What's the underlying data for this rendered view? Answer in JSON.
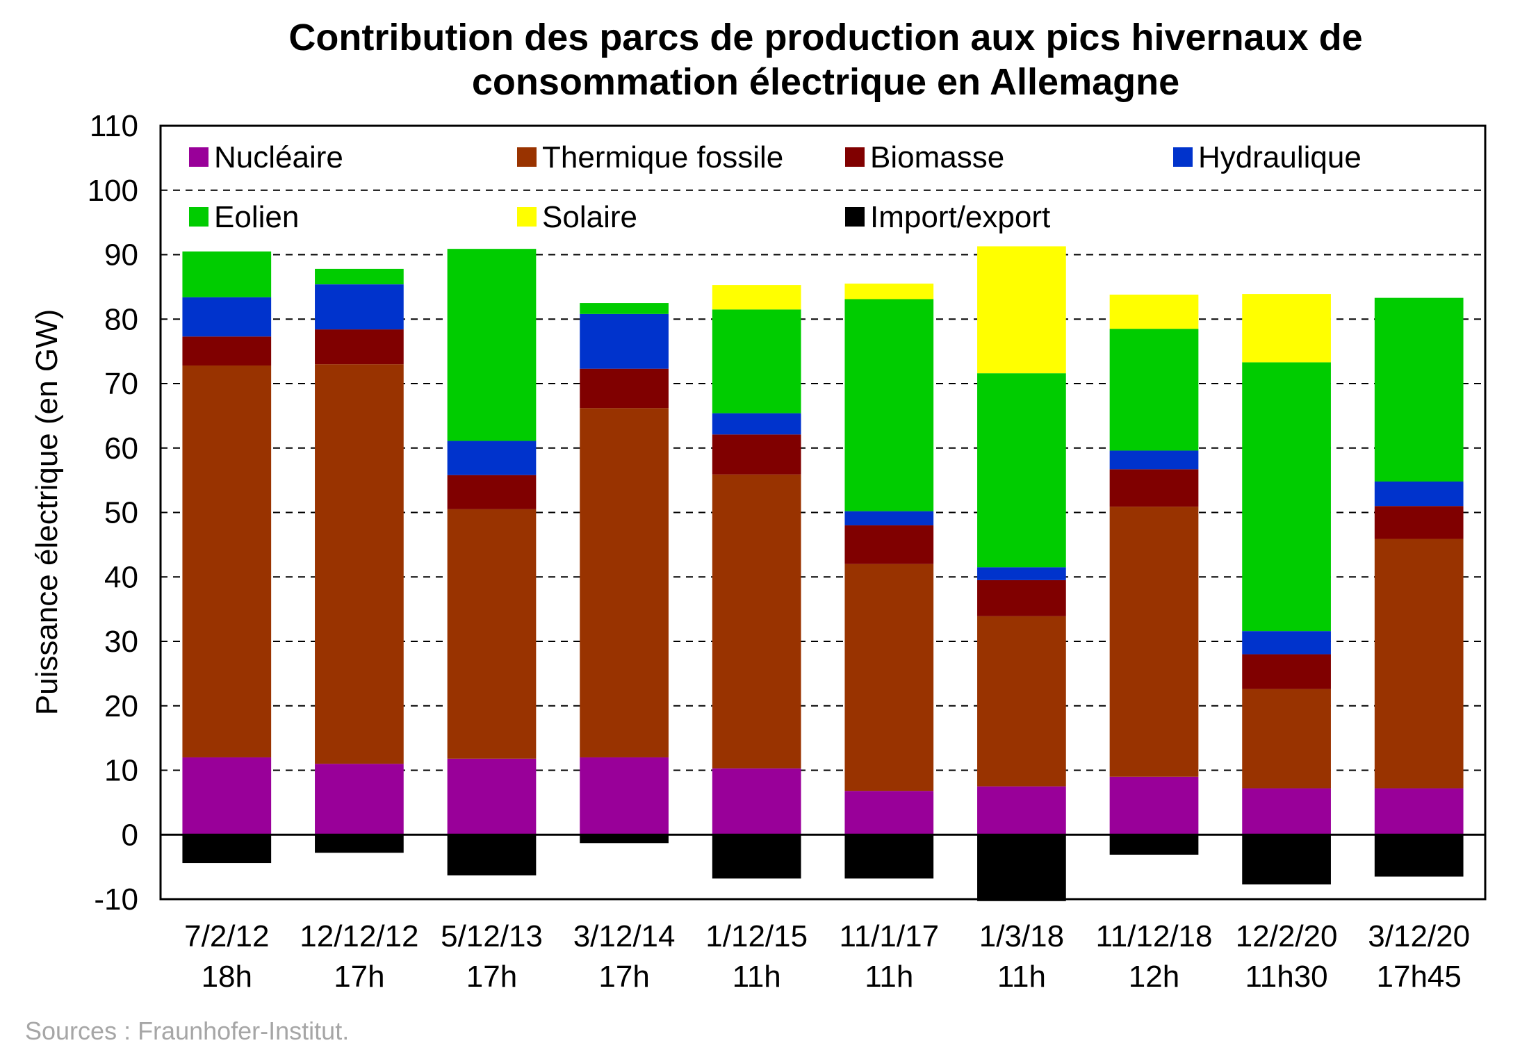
{
  "chart_data": {
    "type": "bar",
    "stacked": true,
    "title": "Contribution des parcs de production aux pics hivernaux de consommation électrique en Allemagne",
    "title_lines": [
      "Contribution des parcs de production aux pics hivernaux de",
      "consommation électrique en Allemagne"
    ],
    "ylabel": "Puissance électrique (en GW)",
    "xlabel": "",
    "ylim": [
      -10,
      110
    ],
    "yticks": [
      -10,
      0,
      10,
      20,
      30,
      40,
      50,
      60,
      70,
      80,
      90,
      100,
      110
    ],
    "grid": "horizontal dashed",
    "legend_position": "top (inside plot area)",
    "categories": [
      [
        "7/2/12",
        "18h"
      ],
      [
        "12/12/12",
        "17h"
      ],
      [
        "5/12/13",
        "17h"
      ],
      [
        "3/12/14",
        "17h"
      ],
      [
        "1/12/15",
        "11h"
      ],
      [
        "11/1/17",
        "11h"
      ],
      [
        "1/3/18",
        "11h"
      ],
      [
        "11/12/18",
        "12h"
      ],
      [
        "12/2/20",
        "11h30"
      ],
      [
        "3/12/20",
        "17h45"
      ]
    ],
    "series": [
      {
        "name": "Nucléaire",
        "color": "#990099",
        "values": [
          12,
          11,
          11.8,
          12,
          10.3,
          6.8,
          7.5,
          9,
          7.2,
          7.2
        ]
      },
      {
        "name": "Thermique fossile",
        "color": "#993300",
        "values": [
          60.8,
          62,
          38.7,
          54.2,
          45.6,
          35.2,
          26.4,
          41.9,
          15.4,
          38.7
        ]
      },
      {
        "name": "Biomasse",
        "color": "#800000",
        "values": [
          4.5,
          5.4,
          5.3,
          6.1,
          6.2,
          6,
          5.6,
          5.8,
          5.4,
          5.1
        ]
      },
      {
        "name": "Hydraulique",
        "color": "#0033cc",
        "values": [
          6.1,
          7,
          5.3,
          8.5,
          3.3,
          2.2,
          2,
          2.9,
          3.6,
          3.8
        ]
      },
      {
        "name": "Eolien",
        "color": "#00cc00",
        "values": [
          7.1,
          2.4,
          29.8,
          1.7,
          16.1,
          32.9,
          30.1,
          18.9,
          41.7,
          28.5
        ]
      },
      {
        "name": "Solaire",
        "color": "#ffff00",
        "values": [
          0,
          0,
          0,
          0,
          3.8,
          2.4,
          19.7,
          5.3,
          10.6,
          0
        ]
      },
      {
        "name": "Import/export",
        "color": "#000000",
        "values": [
          -4.4,
          -2.8,
          -6.3,
          -1.3,
          -6.8,
          -6.8,
          -10.3,
          -3.1,
          -7.7,
          -6.5
        ]
      }
    ],
    "source": "Sources : Fraunhofer-Institut."
  }
}
